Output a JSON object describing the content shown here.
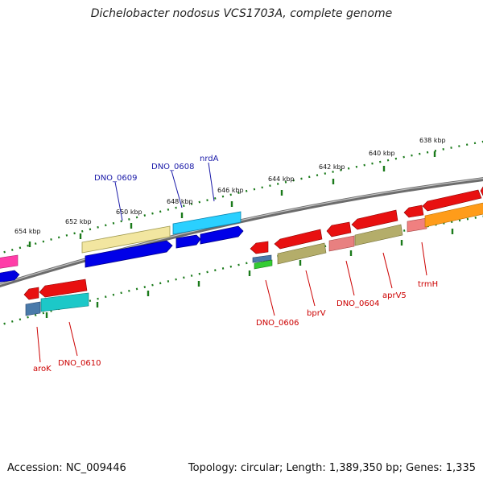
{
  "title": "Dichelobacter nodosus VCS1703A, complete genome",
  "footer": {
    "accession": "Accession: NC_009446",
    "summary": "Topology: circular; Length: 1,389,350 bp; Genes: 1,335"
  },
  "colors": {
    "backbone": "#808080",
    "tick": "#1a7a1a",
    "label_blue": "#1a1aa8",
    "label_red": "#cc0000"
  },
  "ticks": [
    {
      "label": "654 kbp"
    },
    {
      "label": "652 kbp"
    },
    {
      "label": "650 kbp"
    },
    {
      "label": "648 kbp"
    },
    {
      "label": "646 kbp"
    },
    {
      "label": "644 kbp"
    },
    {
      "label": "642 kbp"
    },
    {
      "label": "640 kbp"
    },
    {
      "label": "638 kbp"
    }
  ],
  "gene_labels": [
    {
      "text": "DNO_0609",
      "color": "blue"
    },
    {
      "text": "DNO_0608",
      "color": "blue"
    },
    {
      "text": "nrdA",
      "color": "blue"
    },
    {
      "text": "aroK",
      "color": "red"
    },
    {
      "text": "DNO_0610",
      "color": "red"
    },
    {
      "text": "DNO_0606",
      "color": "red"
    },
    {
      "text": "bprV",
      "color": "red"
    },
    {
      "text": "DNO_0604",
      "color": "red"
    },
    {
      "text": "aprV5",
      "color": "red"
    },
    {
      "text": "trmH",
      "color": "red"
    }
  ]
}
